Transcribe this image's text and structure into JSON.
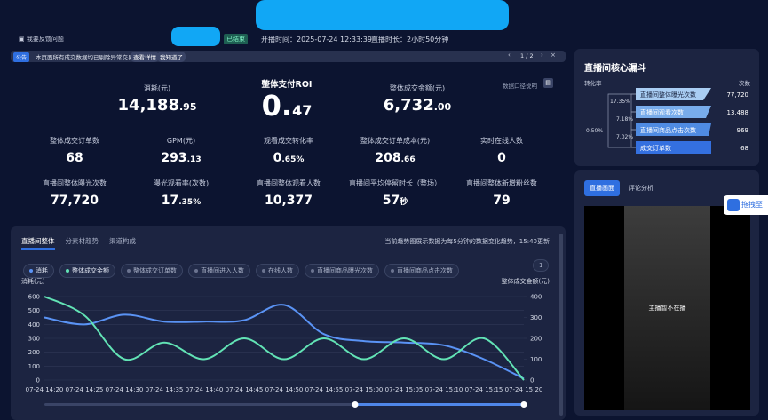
{
  "header": {
    "feedback": "我要反馈问题",
    "status": "已结束",
    "start_time": "开播时间：2025-07-24 12:33:39",
    "duration": "直播时长：2小时50分钟"
  },
  "notice": {
    "tag": "公告",
    "text": "本页面所有成交数据均已剔除异常交易数据。",
    "details": "查看详情",
    "dismiss": "我知道了",
    "pager": "1 / 2"
  },
  "metrics": {
    "note": "数据口径说明",
    "primary": [
      {
        "label": "消耗(元)",
        "value": "14,188",
        "fraction": ".95"
      },
      {
        "label": "整体支付ROI",
        "value": "0.",
        "fraction": "47"
      },
      {
        "label": "整体成交金额(元)",
        "value": "6,732",
        "fraction": ".00"
      }
    ],
    "rows": [
      [
        {
          "label": "整体成交订单数",
          "value": "68",
          "fraction": ""
        },
        {
          "label": "GPM(元)",
          "value": "293",
          "fraction": ".13"
        },
        {
          "label": "观看成交转化率",
          "value": "0",
          "fraction": ".65%"
        },
        {
          "label": "整体成交订单成本(元)",
          "value": "208",
          "fraction": ".66"
        },
        {
          "label": "实时在线人数",
          "value": "0",
          "fraction": ""
        }
      ],
      [
        {
          "label": "直播间整体曝光次数",
          "value": "77,720",
          "fraction": ""
        },
        {
          "label": "曝光观看率(次数)",
          "value": "17",
          "fraction": ".35%"
        },
        {
          "label": "直播间整体观看人数",
          "value": "10,377",
          "fraction": ""
        },
        {
          "label": "直播间平均停留时长（整场）",
          "value": "57",
          "fraction": "秒"
        },
        {
          "label": "直播间整体新增粉丝数",
          "value": "79",
          "fraction": ""
        }
      ]
    ]
  },
  "chart_panel": {
    "tabs": [
      "直播间整体",
      "分素材趋势",
      "渠道构成"
    ],
    "note": "当前趋势图展示数据为每5分钟的数据变化趋势，15:40更新",
    "filters": [
      "整体成交订单数",
      "直播间进入人数",
      "在线人数",
      "直播间商品曝光次数",
      "直播间商品点击次数"
    ],
    "page": "1"
  },
  "chart_data": {
    "type": "line",
    "ylabel": "消耗(元)",
    "y2label": "整体成交金额(元)",
    "categories": [
      "07-24 14:20",
      "07-24 14:25",
      "07-24 14:30",
      "07-24 14:35",
      "07-24 14:40",
      "07-24 14:45",
      "07-24 14:50",
      "07-24 14:55",
      "07-24 15:00",
      "07-24 15:05",
      "07-24 15:10",
      "07-24 15:15",
      "07-24 15:20"
    ],
    "series": [
      {
        "name": "消耗",
        "color": "#5a93f5",
        "axis": "y",
        "values": [
          450,
          400,
          470,
          420,
          420,
          430,
          540,
          330,
          280,
          270,
          250,
          150,
          10
        ]
      },
      {
        "name": "整体成交金额",
        "color": "#62e3b5",
        "axis": "y2",
        "values": [
          400,
          310,
          100,
          180,
          100,
          200,
          100,
          200,
          100,
          200,
          100,
          200,
          0
        ]
      }
    ],
    "ylim": [
      0,
      600
    ],
    "yticks": [
      0,
      100,
      200,
      300,
      400,
      500,
      600
    ],
    "y2lim": [
      0,
      400
    ],
    "y2ticks": [
      0,
      100,
      200,
      300,
      400
    ],
    "grid": true
  },
  "funnel": {
    "title": "直播间核心漏斗",
    "rate_label": "转化率",
    "count_label": "次数",
    "steps": [
      {
        "label": "直播间整体曝光次数",
        "count": "77,720"
      },
      {
        "label": "直播间观看次数",
        "count": "13,488"
      },
      {
        "label": "直播间商品点击次数",
        "count": "969"
      },
      {
        "label": "成交订单数",
        "count": "68"
      }
    ],
    "rates": [
      "17.35%",
      "7.18%",
      "7.02%",
      "0.50%"
    ]
  },
  "live": {
    "tabs": [
      "直播画面",
      "评论分析"
    ],
    "status": "主播暂不在播",
    "drag": "拖拽至"
  }
}
